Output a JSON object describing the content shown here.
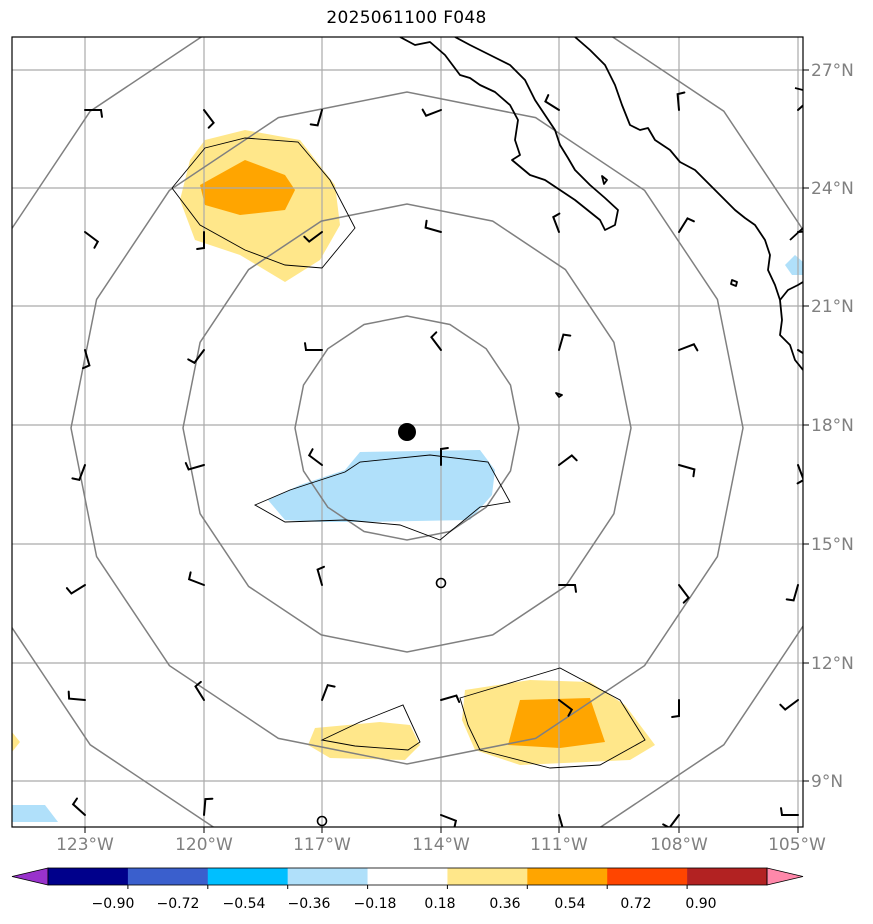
{
  "title": "2025061100 F048",
  "map": {
    "projection": "azimuthal",
    "center_marker": "storm-center",
    "lon_ticks": [
      "123°W",
      "120°W",
      "117°W",
      "114°W",
      "111°W",
      "108°W",
      "105°W"
    ],
    "lat_ticks": [
      "27°N",
      "24°N",
      "21°N",
      "18°N",
      "15°N",
      "12°N",
      "9°N"
    ],
    "range_rings": 4,
    "coastline_color": "#000000",
    "grid_color": "#aaaaaa",
    "ring_color": "#808080"
  },
  "colorbar": {
    "ticks": [
      "−0.90",
      "−0.72",
      "−0.54",
      "−0.36",
      "−0.18",
      "0.18",
      "0.36",
      "0.54",
      "0.72",
      "0.90"
    ],
    "colors": [
      "#9932cc",
      "#00008b",
      "#3a5fcd",
      "#00bfff",
      "#b0e0fa",
      "#ffffff",
      "#ffe78a",
      "#ffa500",
      "#ff4500",
      "#b22222",
      "#ff88aa"
    ],
    "extend": "both"
  },
  "shaded_fields": [
    {
      "color": "#ffe78a",
      "level": "0.18 to 0.36"
    },
    {
      "color": "#ffa500",
      "level": "0.36 to 0.54"
    },
    {
      "color": "#b0e0fa",
      "level": "-0.36 to -0.18"
    }
  ]
}
